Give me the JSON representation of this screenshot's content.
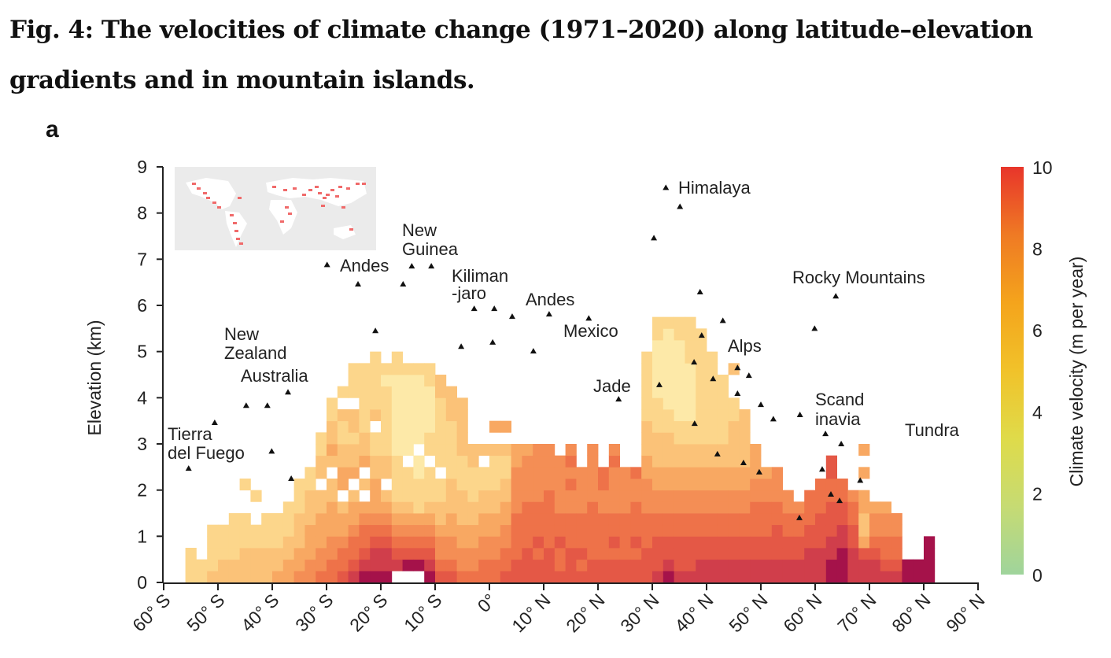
{
  "figure": {
    "title_line1": "Fig. 4: The velocities of climate change (1971–2020) along latitude–elevation",
    "title_line2": "gradients and in mountain islands.",
    "panel_label": "a"
  },
  "chart_data": {
    "type": "heatmap",
    "xlabel": "",
    "ylabel": "Elevation (km)",
    "xlim": [
      -60,
      90
    ],
    "ylim": [
      0,
      9
    ],
    "x_ticks": [
      -60,
      -50,
      -40,
      -30,
      -20,
      -10,
      0,
      10,
      20,
      30,
      40,
      50,
      60,
      70,
      80,
      90
    ],
    "x_tick_labels": [
      "60° S",
      "50° S",
      "40° S",
      "30° S",
      "20° S",
      "10° S",
      "0°",
      "10° N",
      "20° N",
      "30° N",
      "40° N",
      "50° N",
      "60° N",
      "70° N",
      "80° N",
      "90° N"
    ],
    "y_ticks": [
      "0",
      "1",
      "2",
      "3",
      "4",
      "5",
      "6",
      "7",
      "8",
      "9"
    ],
    "colorbar": {
      "label": "Climate velocity (m per year)",
      "range": [
        0,
        10
      ],
      "tick_labels": [
        "0",
        "2",
        "4",
        "6",
        "8",
        "10"
      ],
      "colors": [
        "#9fd49c",
        "#c6db73",
        "#dfdb4a",
        "#f1c22a",
        "#f4a41c",
        "#ef7a24",
        "#e8352a"
      ]
    },
    "grid": false,
    "lat_bin_deg": 2,
    "elev_bin_km": 0.25,
    "cell_level_colors": [
      "#ffffff",
      "#fde9a8",
      "#fcd68b",
      "#fbc278",
      "#f8a862",
      "#f48e55",
      "#ee7249",
      "#e45846",
      "#d03e4b",
      "#a5124a"
    ],
    "columns": [
      {
        "lat": -56,
        "levels": "222"
      },
      {
        "lat": -54,
        "levels": "22"
      },
      {
        "lat": -52,
        "levels": "32222"
      },
      {
        "lat": -50,
        "levels": "33222"
      },
      {
        "lat": -48,
        "levels": "332222"
      },
      {
        "lat": -46,
        "levels": "333222002"
      },
      {
        "lat": -44,
        "levels": "33322002"
      },
      {
        "lat": -42,
        "levels": "333222"
      },
      {
        "lat": -40,
        "levels": "433222"
      },
      {
        "lat": -38,
        "levels": "4433222"
      },
      {
        "lat": -36,
        "levels": "544333222"
      },
      {
        "lat": -34,
        "levels": "5544433322"
      },
      {
        "lat": -32,
        "levels": "6554443303322"
      },
      {
        "lat": -30,
        "levels": "6655444330343322"
      },
      {
        "lat": -28,
        "levels": "76654430443322302"
      },
      {
        "lat": -26,
        "levels": "8766544304332330222"
      },
      {
        "lat": -24,
        "levels": "9876654030433222222"
      },
      {
        "lat": -22,
        "levels": "98876544433220322222"
      },
      {
        "lat": -20,
        "levels": "9887654303322222212"
      },
      {
        "lat": -18,
        "levels": "08765432222111111122"
      },
      {
        "lat": -16,
        "levels": "0976543222011111112"
      },
      {
        "lat": -14,
        "levels": "0976542221101111112"
      },
      {
        "lat": -12,
        "levels": "9876543222022111122"
      },
      {
        "lat": -10,
        "levels": "765543322022222233"
      },
      {
        "lat": -8,
        "levels": "76554433322222333"
      },
      {
        "lat": -6,
        "levels": "6554433322233333"
      },
      {
        "lat": -4,
        "levels": "655443322233"
      },
      {
        "lat": -2,
        "levels": "665544332203"
      },
      {
        "lat": 0,
        "levels": "66554433222304"
      },
      {
        "lat": 2,
        "levels": "76655443322304"
      },
      {
        "lat": 4,
        "levels": "776666555544"
      },
      {
        "lat": 6,
        "levels": "777666655554"
      },
      {
        "lat": 8,
        "levels": "776766655555"
      },
      {
        "lat": 10,
        "levels": "777666665555"
      },
      {
        "lat": 12,
        "levels": "76676655555"
      },
      {
        "lat": 14,
        "levels": "777666556565"
      },
      {
        "lat": 16,
        "levels": "7676665555"
      },
      {
        "lat": 18,
        "levels": "776666655555"
      },
      {
        "lat": 20,
        "levels": "7766665566"
      },
      {
        "lat": 22,
        "levels": "776766555565"
      },
      {
        "lat": 24,
        "levels": "7766665555"
      },
      {
        "lat": 26,
        "levels": "7767666556"
      },
      {
        "lat": 28,
        "levels": "77766655544333222222"
      },
      {
        "lat": 30,
        "levels": "87776655443332221111122"
      },
      {
        "lat": 32,
        "levels": "98776655443332211111112"
      },
      {
        "lat": 34,
        "levels": "87776655443322111111122"
      },
      {
        "lat": 36,
        "levels": "87776655443322111112222"
      },
      {
        "lat": 38,
        "levels": "8877665544332222222222"
      },
      {
        "lat": 40,
        "levels": "88776655443322222222"
      },
      {
        "lat": 42,
        "levels": "887766554433222222"
      },
      {
        "lat": 44,
        "levels": "8877665544333322003"
      },
      {
        "lat": 46,
        "levels": "887766554433333"
      },
      {
        "lat": 48,
        "levels": "887766655444"
      },
      {
        "lat": 50,
        "levels": "8877666554"
      },
      {
        "lat": 52,
        "levels": "8877766555"
      },
      {
        "lat": 54,
        "levels": "88776655"
      },
      {
        "lat": 56,
        "levels": "8877665"
      },
      {
        "lat": 58,
        "levels": "88877666"
      },
      {
        "lat": 60,
        "levels": "888777666"
      },
      {
        "lat": 62,
        "levels": "99887776677"
      },
      {
        "lat": 64,
        "levels": "999887766"
      },
      {
        "lat": 66,
        "levels": "88877665"
      },
      {
        "lat": 68,
        "levels": "887433440404"
      },
      {
        "lat": 70,
        "levels": "8876554"
      },
      {
        "lat": 72,
        "levels": "8766554"
      },
      {
        "lat": 74,
        "levels": "876655"
      },
      {
        "lat": 76,
        "levels": "99"
      },
      {
        "lat": 78,
        "levels": "99"
      },
      {
        "lat": 80,
        "levels": "9999"
      }
    ],
    "peaks": [
      [
        -55.4,
        2.47
      ],
      [
        -50.6,
        3.46
      ],
      [
        -44.8,
        3.83
      ],
      [
        -40.9,
        3.83
      ],
      [
        -37.1,
        4.12
      ],
      [
        -40.1,
        2.84
      ],
      [
        -36.5,
        2.25
      ],
      [
        -29.9,
        6.88
      ],
      [
        -24.2,
        6.46
      ],
      [
        -21.0,
        5.45
      ],
      [
        -15.9,
        6.46
      ],
      [
        -14.3,
        6.85
      ],
      [
        -10.7,
        6.85
      ],
      [
        -5.2,
        5.11
      ],
      [
        -2.8,
        5.93
      ],
      [
        0.6,
        5.2
      ],
      [
        0.9,
        5.93
      ],
      [
        4.2,
        5.76
      ],
      [
        8.1,
        5.01
      ],
      [
        11.0,
        5.81
      ],
      [
        18.3,
        5.72
      ],
      [
        23.8,
        3.97
      ],
      [
        30.3,
        7.46
      ],
      [
        31.3,
        4.28
      ],
      [
        32.5,
        8.55
      ],
      [
        35.1,
        8.14
      ],
      [
        37.7,
        4.77
      ],
      [
        37.8,
        3.44
      ],
      [
        38.8,
        6.29
      ],
      [
        39.1,
        5.35
      ],
      [
        41.2,
        4.41
      ],
      [
        43.0,
        5.67
      ],
      [
        42.0,
        2.78
      ],
      [
        45.7,
        4.65
      ],
      [
        45.7,
        4.09
      ],
      [
        47.8,
        4.48
      ],
      [
        46.8,
        2.59
      ],
      [
        50.0,
        3.85
      ],
      [
        49.7,
        2.39
      ],
      [
        52.3,
        3.54
      ],
      [
        57.1,
        1.4
      ],
      [
        57.2,
        3.63
      ],
      [
        59.9,
        5.5
      ],
      [
        61.3,
        2.45
      ],
      [
        61.9,
        3.22
      ],
      [
        62.9,
        1.91
      ],
      [
        63.8,
        6.2
      ],
      [
        64.5,
        1.77
      ],
      [
        64.8,
        3.0
      ],
      [
        68.3,
        2.21
      ]
    ],
    "annotations": {
      "himalaya": "Himalaya",
      "rocky": "Rocky Mountains",
      "new_guinea": [
        "New",
        "Guinea"
      ],
      "andes_south": "Andes",
      "kilimanjaro": [
        "Kiliman",
        "-jaro"
      ],
      "andes_north": "Andes",
      "mexico": "Mexico",
      "alps": "Alps",
      "jade": "Jade",
      "scandinavia": [
        "Scand",
        "inavia"
      ],
      "tundra": "Tundra",
      "new_zealand": [
        "New",
        "Zealand"
      ],
      "australia": "Australia",
      "tierra": [
        "Tierra",
        "del Fuego"
      ]
    },
    "inset": {
      "map_background": "#ebebeb",
      "land": "#ffffff",
      "highlight": "#f06a6a"
    }
  }
}
